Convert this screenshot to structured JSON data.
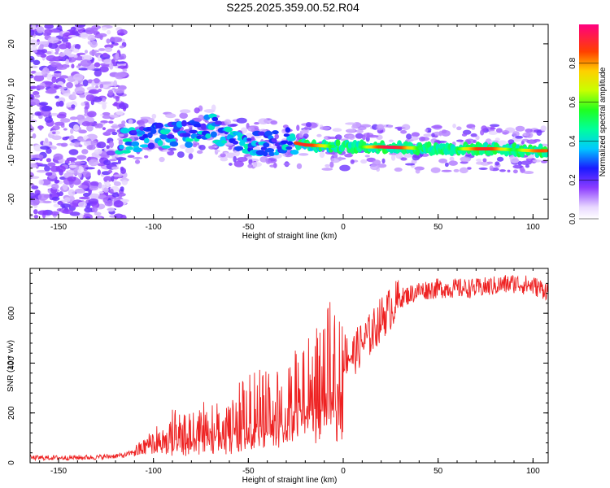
{
  "title": "S225.2025.359.00.52.R04",
  "chart_data": [
    {
      "type": "heatmap",
      "xlabel": "Height of straight line (km)",
      "ylabel": "Frequency (Hz)",
      "xlim": [
        -165,
        108
      ],
      "ylim": [
        -25,
        25
      ],
      "xticks": [
        -150,
        -100,
        -50,
        0,
        50,
        100
      ],
      "yticks": [
        -20,
        -10,
        0,
        10,
        20
      ],
      "colorbar": {
        "label": "Normalized spectral amplitude",
        "range": [
          0,
          1
        ],
        "ticks": [
          "0.0",
          "0.2",
          "0.4",
          "0.6",
          "0.8"
        ]
      },
      "ridge": {
        "description_points_x": [
          -115,
          -100,
          -80,
          -70,
          -60,
          -45,
          -30,
          -20,
          0,
          20,
          50,
          80,
          100,
          105
        ],
        "description_points_y": [
          -5,
          -4,
          -3,
          -1,
          -5,
          -6,
          -5,
          -6,
          -6.5,
          -6.5,
          -7,
          -7,
          -7.5,
          -7.5
        ],
        "peak_amplitude_x": [
          -20,
          25,
          75,
          105
        ],
        "peak_amplitude": [
          0.9,
          0.95,
          0.9,
          0.85
        ]
      }
    },
    {
      "type": "line",
      "xlabel": "Height of straight line (km)",
      "ylabel": "SNR (10 * v/v)",
      "xlim": [
        -165,
        108
      ],
      "ylim": [
        0,
        780
      ],
      "xticks": [
        -150,
        -100,
        -50,
        0,
        50,
        100
      ],
      "yticks": [
        0,
        200,
        400,
        600
      ],
      "series": [
        {
          "name": "SNR",
          "color": "#ee2222",
          "x": [
            -165,
            -150,
            -130,
            -115,
            -105,
            -100,
            -95,
            -90,
            -85,
            -80,
            -75,
            -70,
            -65,
            -60,
            -55,
            -50,
            -45,
            -40,
            -35,
            -30,
            -25,
            -20,
            -15,
            -10,
            -5,
            0,
            5,
            10,
            15,
            20,
            25,
            30,
            40,
            50,
            60,
            70,
            80,
            90,
            100,
            108
          ],
          "y": [
            20,
            20,
            22,
            30,
            60,
            90,
            110,
            140,
            120,
            130,
            150,
            170,
            160,
            150,
            200,
            220,
            250,
            230,
            260,
            220,
            300,
            310,
            330,
            380,
            420,
            440,
            430,
            480,
            520,
            580,
            620,
            660,
            690,
            700,
            700,
            700,
            710,
            720,
            710,
            690
          ]
        }
      ]
    }
  ]
}
